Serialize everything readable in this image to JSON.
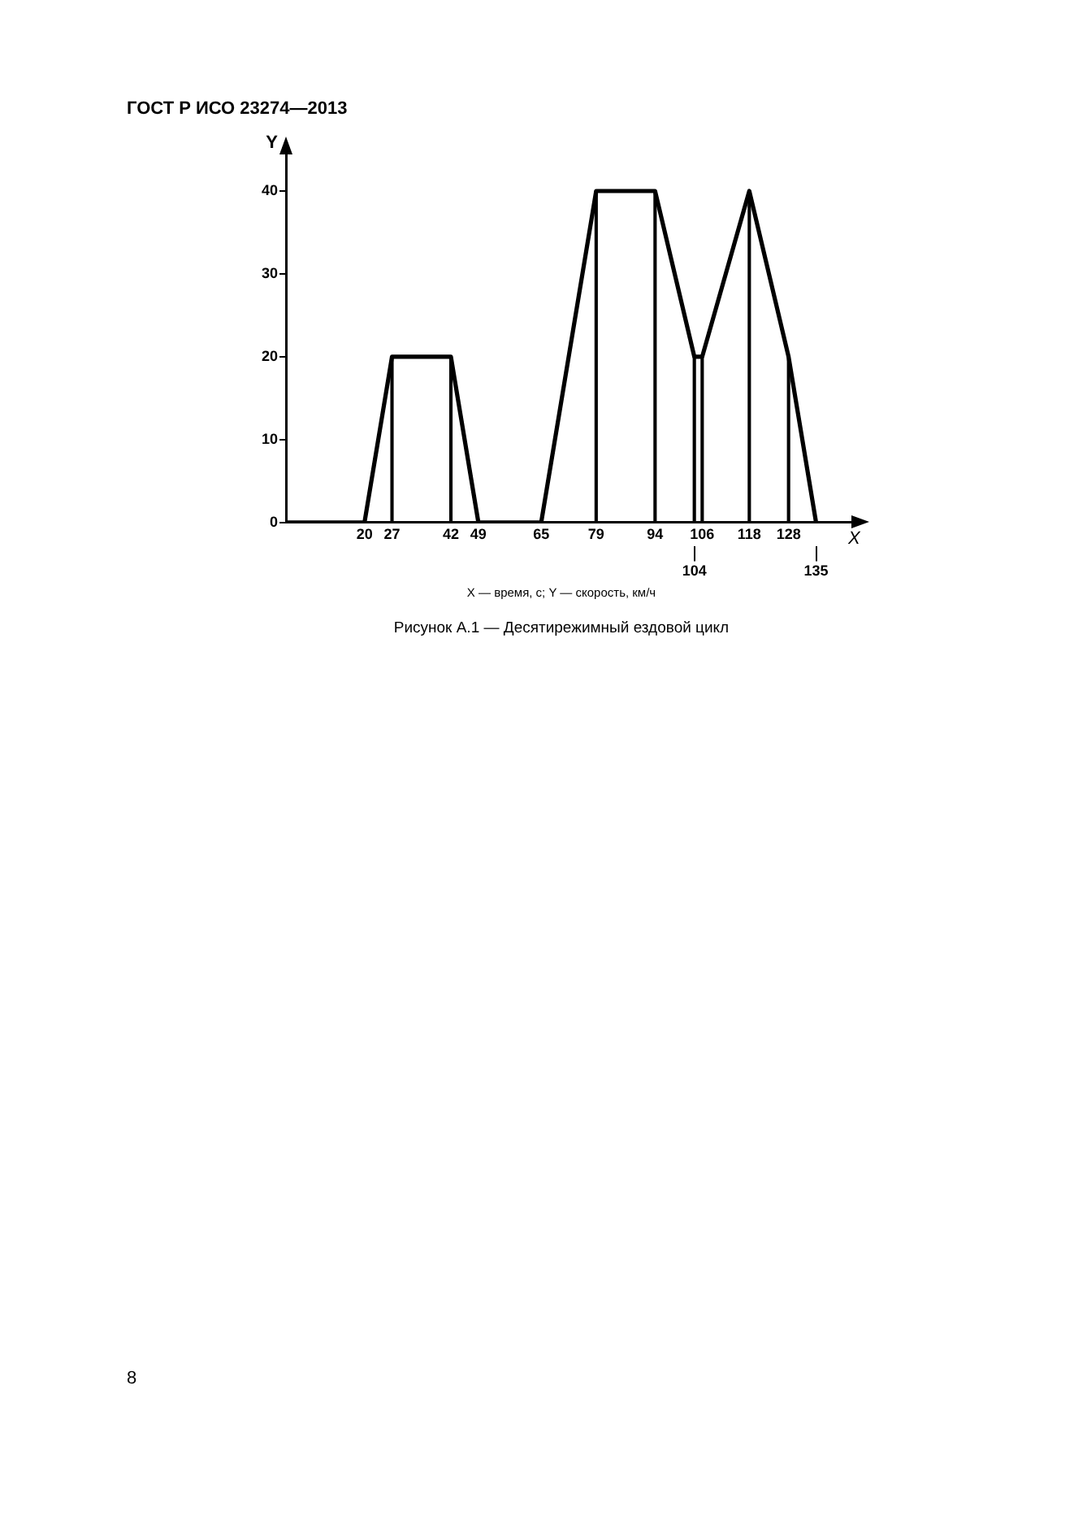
{
  "chart_data": {
    "type": "line",
    "title": "Рисунок А.1 — Десятирежимный ездовой цикл",
    "subtitle": "X — время, с; Y — скорость, км/ч",
    "xlabel": "X",
    "ylabel": "Y",
    "annotations": [
      "ГОСТ Р ИСО 23274—2013",
      "8"
    ],
    "series": [
      {
        "color": "#000000",
        "x": [
          0,
          20,
          27,
          42,
          49,
          65,
          79,
          94,
          104,
          106,
          118,
          128,
          135
        ],
        "values": [
          0,
          0,
          20,
          20,
          0,
          0,
          40,
          40,
          20,
          20,
          40,
          20,
          0
        ]
      },
      {
        "type": "bar",
        "color": "#000000",
        "x": [
          27,
          42,
          79,
          94,
          104,
          106,
          118,
          128
        ],
        "values": [
          20,
          20,
          40,
          40,
          20,
          20,
          40,
          20
        ]
      }
    ],
    "xlim": [
      0,
      144
    ],
    "ylim": [
      0,
      45
    ],
    "xticks": [
      20,
      27,
      42,
      49,
      65,
      79,
      94,
      106,
      118,
      128
    ],
    "x2lim": [
      0,
      144
    ],
    "x2ticks": [
      104,
      135
    ],
    "yticks": [
      0,
      10,
      20,
      30,
      40
    ],
    "marker": "none",
    "line_style": "solid"
  }
}
